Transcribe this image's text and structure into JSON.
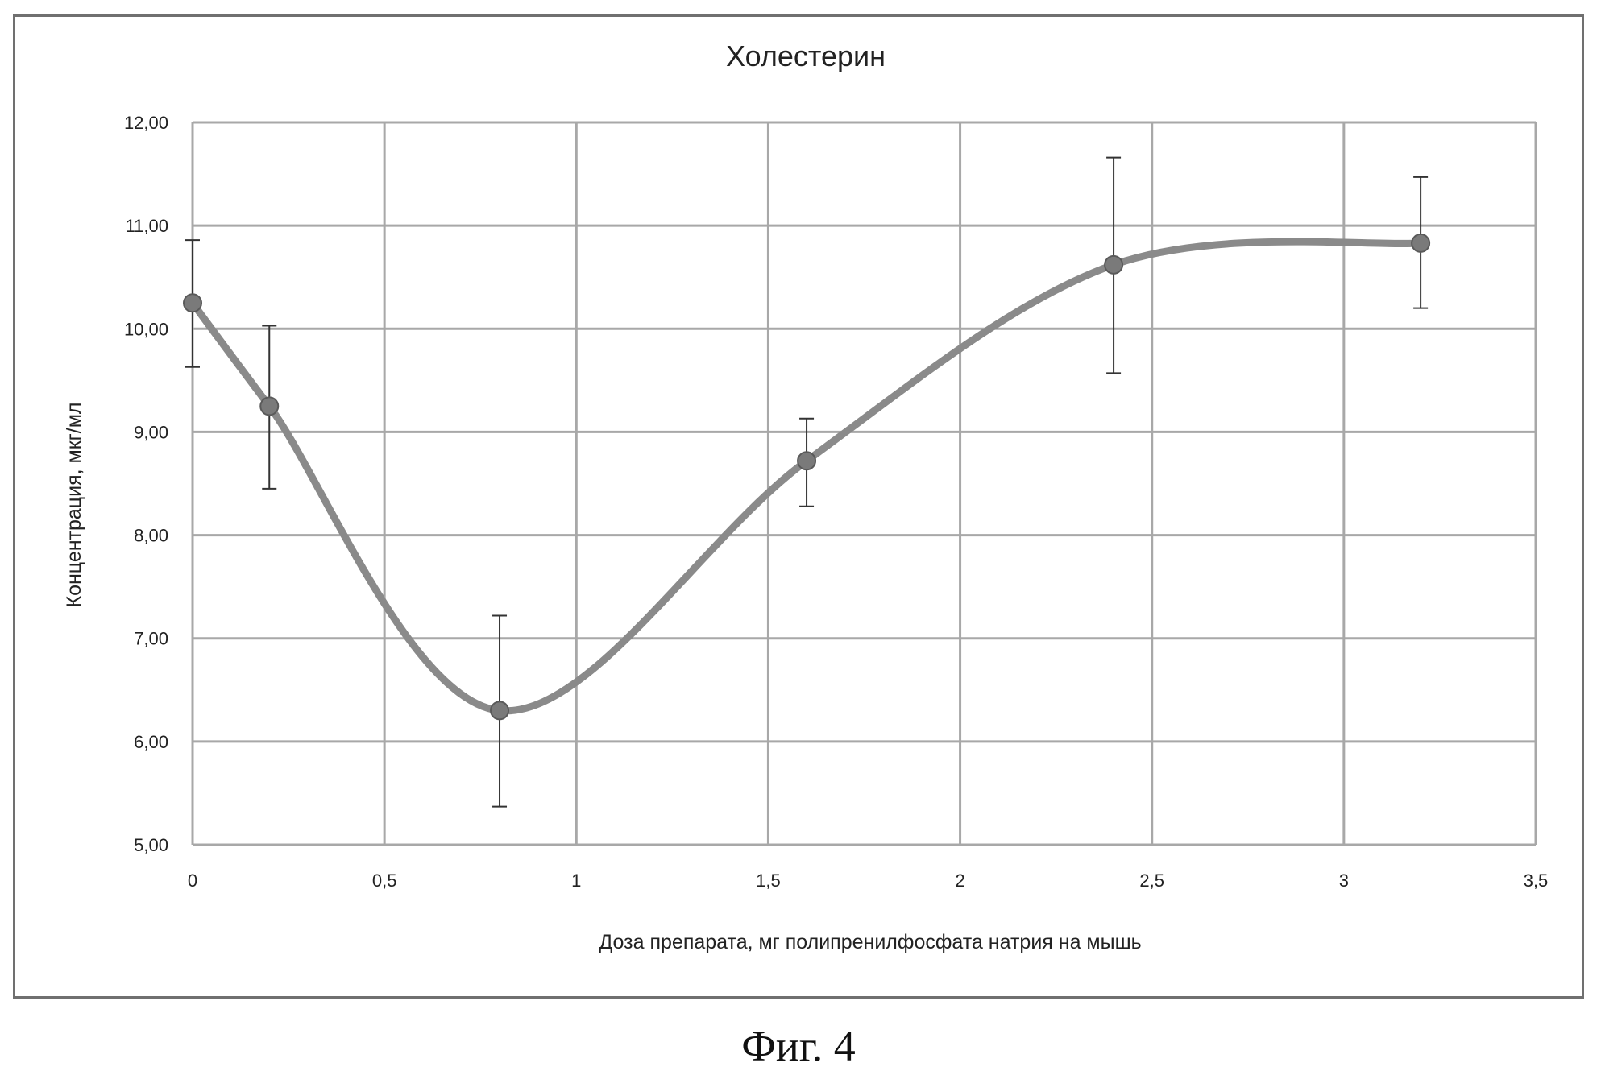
{
  "chart_data": {
    "type": "line",
    "title": "Холестерин",
    "xlabel": "Доза препарата, мг полипренилфосфата натрия на мышь",
    "ylabel": "Концентрация, мкг/мл",
    "xlim": [
      0,
      3.5
    ],
    "ylim": [
      5,
      12
    ],
    "x_ticks": [
      "0",
      "0,5",
      "1",
      "1,5",
      "2",
      "2,5",
      "3",
      "3,5"
    ],
    "y_ticks": [
      "5,00",
      "6,00",
      "7,00",
      "8,00",
      "9,00",
      "10,00",
      "11,00",
      "12,00"
    ],
    "grid": true,
    "smooth": true,
    "series": [
      {
        "x": [
          0,
          0.2,
          0.8,
          1.6,
          2.4,
          3.2
        ],
        "y": [
          10.25,
          9.25,
          6.3,
          8.72,
          10.62,
          10.83
        ],
        "error_low": [
          9.63,
          8.45,
          5.37,
          8.28,
          9.57,
          10.2
        ],
        "error_high": [
          10.86,
          10.03,
          7.22,
          9.13,
          11.66,
          11.47
        ]
      }
    ],
    "colors": {
      "line": "#8a8a8a",
      "marker": "#7a7a7a",
      "grid": "#a8a8a8",
      "error_bar": "#333333"
    }
  },
  "caption": "Фиг. 4"
}
